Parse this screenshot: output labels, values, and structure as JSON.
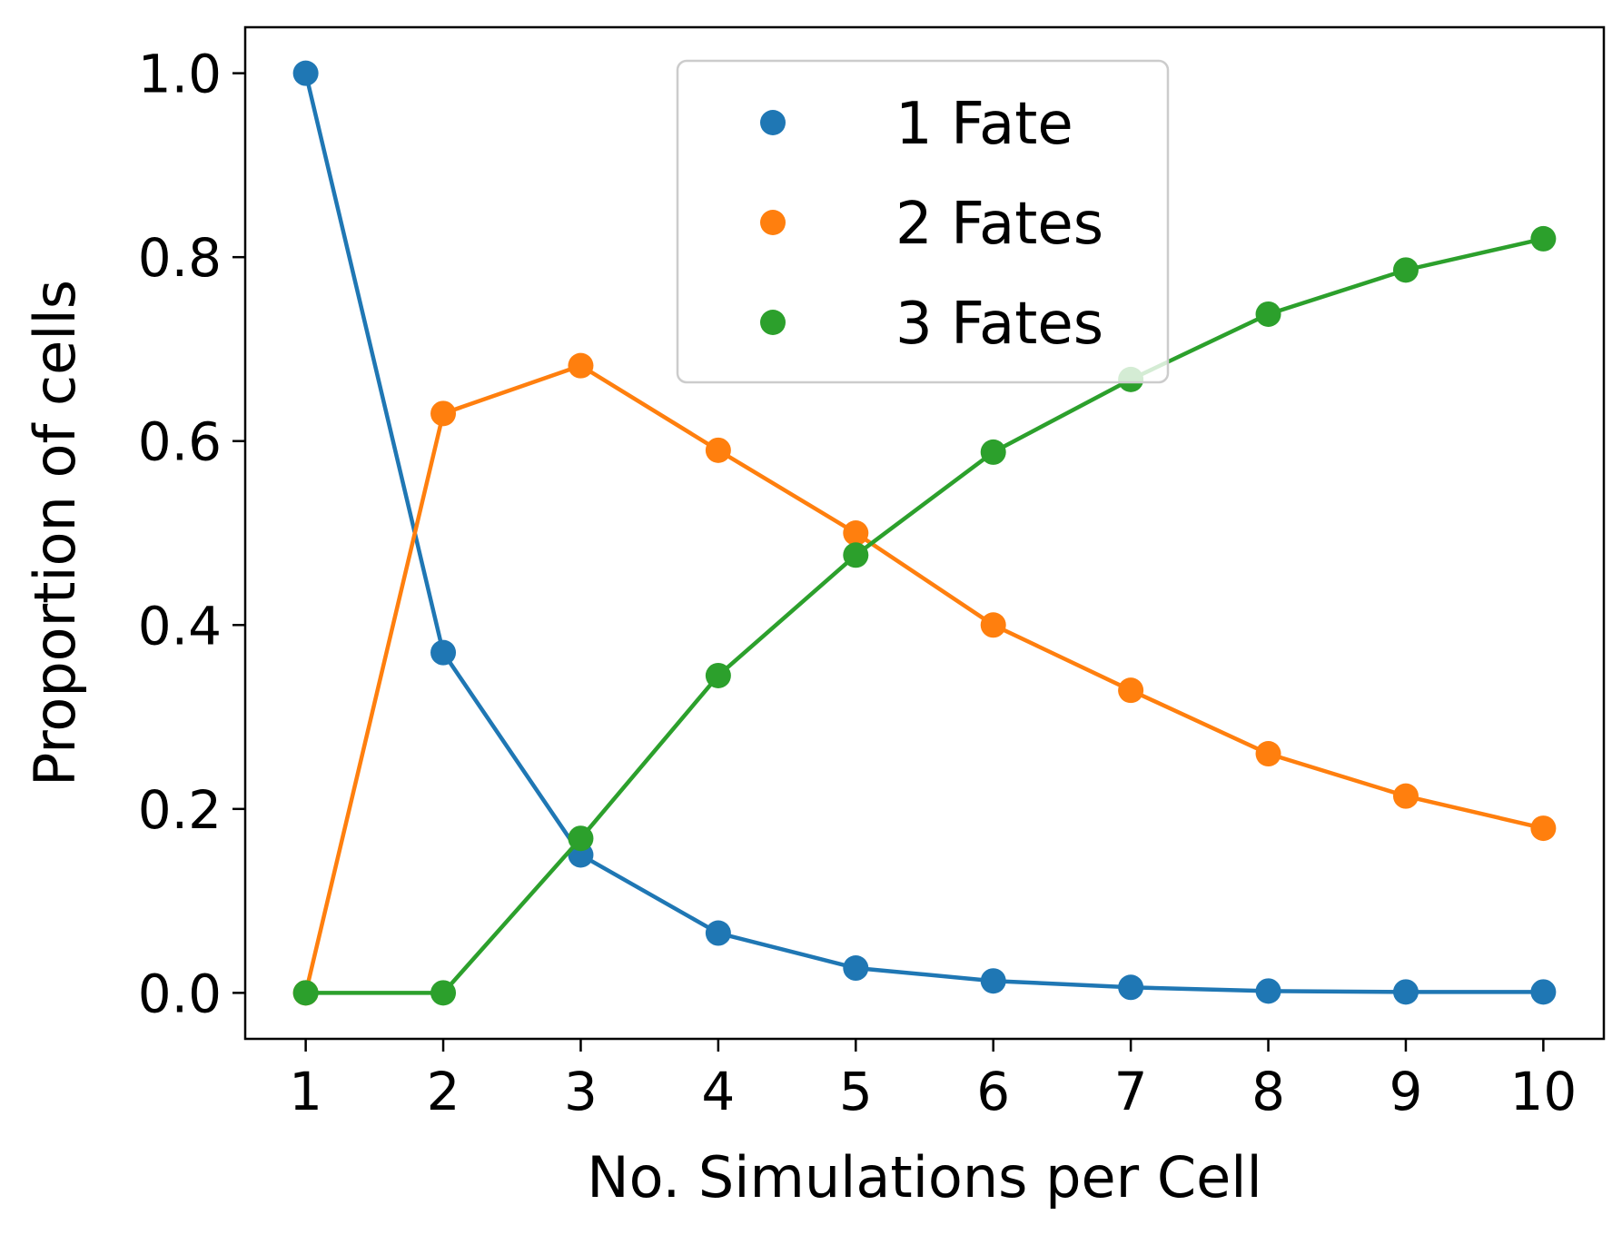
{
  "chart_data": {
    "type": "line",
    "title": "",
    "xlabel": "No. Simulations per Cell",
    "ylabel": "Proportion of cells",
    "x": [
      1,
      2,
      3,
      4,
      5,
      6,
      7,
      8,
      9,
      10
    ],
    "xlim": [
      0.56,
      10.44
    ],
    "ylim": [
      -0.05,
      1.05
    ],
    "xticks": [
      "1",
      "2",
      "3",
      "4",
      "5",
      "6",
      "7",
      "8",
      "9",
      "10"
    ],
    "yticks": [
      "0.0",
      "0.2",
      "0.4",
      "0.6",
      "0.8",
      "1.0"
    ],
    "grid": false,
    "legend_position": "top-center",
    "series": [
      {
        "name": "1 Fate",
        "color": "#1f77b4",
        "values": [
          1.0,
          0.37,
          0.15,
          0.065,
          0.027,
          0.013,
          0.006,
          0.002,
          0.001,
          0.001
        ]
      },
      {
        "name": "2 Fates",
        "color": "#ff7f0e",
        "values": [
          0.0,
          0.63,
          0.682,
          0.59,
          0.5,
          0.4,
          0.329,
          0.26,
          0.214,
          0.179
        ]
      },
      {
        "name": "3 Fates",
        "color": "#2ca02c",
        "values": [
          0.0,
          0.0,
          0.168,
          0.345,
          0.476,
          0.588,
          0.667,
          0.738,
          0.786,
          0.82
        ]
      }
    ]
  }
}
